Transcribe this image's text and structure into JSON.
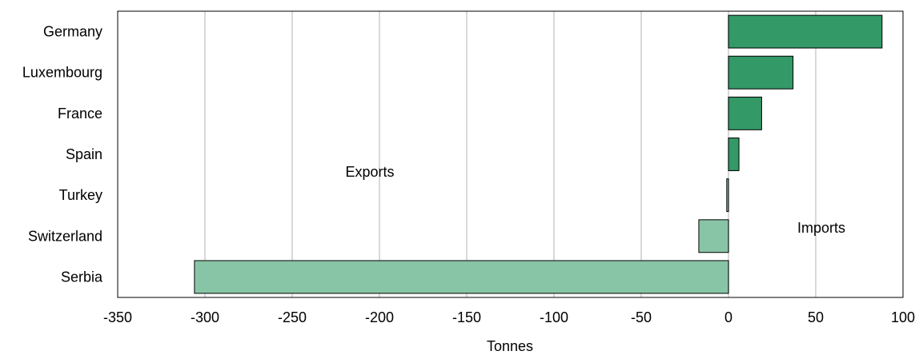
{
  "chart_data": {
    "type": "bar",
    "orientation": "horizontal",
    "categories": [
      "Germany",
      "Luxembourg",
      "France",
      "Spain",
      "Turkey",
      "Switzerland",
      "Serbia"
    ],
    "values": [
      88,
      37,
      19,
      6,
      -1,
      -17,
      -306
    ],
    "xlabel": "Tonnes",
    "xlim": [
      -350,
      100
    ],
    "xticks": [
      -350,
      -300,
      -250,
      -200,
      -150,
      -100,
      -50,
      0,
      50,
      100
    ],
    "xtick_labels": [
      "-350",
      "-300",
      "-250",
      "-200",
      "-150",
      "-100",
      "-50",
      "0",
      "50",
      "100"
    ],
    "grid": "vertical",
    "annotations": [
      "Exports",
      "Imports"
    ],
    "colors": {
      "positive": "#339966",
      "negative": "#88c5a6",
      "grid": "#d9d9d9",
      "edge": "#000000"
    }
  }
}
